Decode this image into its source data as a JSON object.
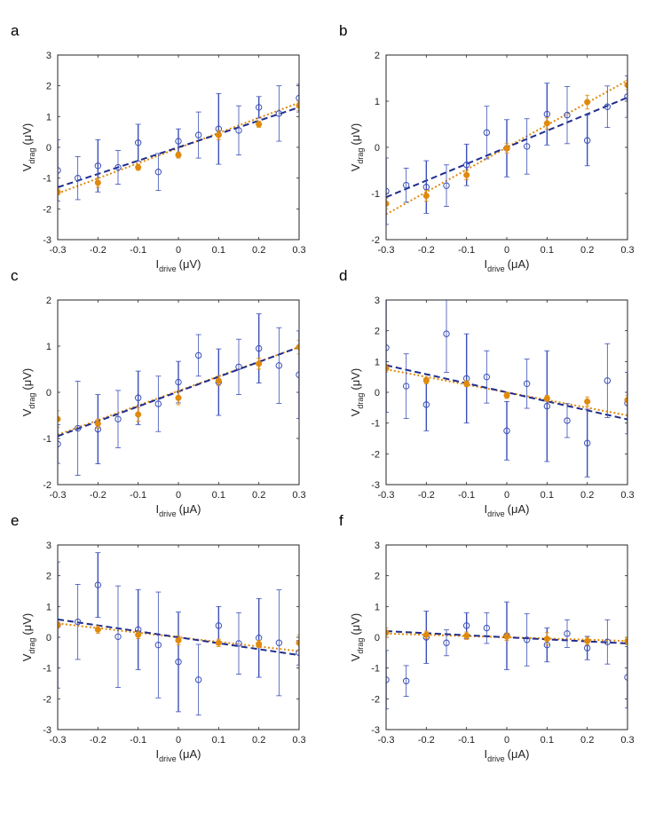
{
  "colors": {
    "blue_fit": "#1f2d8c",
    "blue_points": "#3a4fb8",
    "orange": "#e08a0b",
    "axis": "#262626",
    "tick_text": "#222222"
  },
  "chart_data": [
    {
      "panel": "a",
      "type": "scatter",
      "xlabel_main": "I",
      "xlabel_sub": "drive",
      "xlabel_unit": "(μV)",
      "ylabel_main": "V",
      "ylabel_sub": "drag",
      "ylabel_unit": "(μV)",
      "xlim": [
        -0.3,
        0.3
      ],
      "ylim": [
        -3,
        3
      ],
      "xticks": [
        -0.3,
        -0.2,
        -0.1,
        0,
        0.1,
        0.2,
        0.3
      ],
      "xtick_labels": [
        "-0.3",
        "-0.2",
        "-0.1",
        "0",
        "0.1",
        "0.2",
        "0.3"
      ],
      "yticks": [
        -3,
        -2,
        -1,
        0,
        1,
        2,
        3
      ],
      "ytick_labels": [
        "-3",
        "-2",
        "-1",
        "0",
        "1",
        "2",
        "3"
      ],
      "series": [
        {
          "name": "blue open circles",
          "x": [
            -0.3,
            -0.25,
            -0.2,
            -0.15,
            -0.1,
            -0.05,
            0,
            0.05,
            0.1,
            0.15,
            0.2,
            0.25,
            0.3
          ],
          "y": [
            -0.75,
            -1.0,
            -0.6,
            -0.65,
            0.15,
            -0.8,
            0.2,
            0.4,
            0.6,
            0.55,
            1.3,
            1.1,
            1.6
          ],
          "err": [
            1.0,
            0.7,
            0.85,
            0.55,
            0.6,
            0.6,
            0.4,
            0.75,
            1.15,
            0.8,
            0.35,
            0.9,
            0.45
          ]
        },
        {
          "name": "orange filled",
          "x": [
            -0.3,
            -0.2,
            -0.1,
            0,
            0.1,
            0.2,
            0.3
          ],
          "y": [
            -1.45,
            -1.15,
            -0.65,
            -0.25,
            0.4,
            0.75,
            1.35
          ],
          "err": [
            0.1,
            0.15,
            0.1,
            0.1,
            0.15,
            0.1,
            0.15
          ]
        }
      ],
      "fits": {
        "blue_dashed": [
          -1.3,
          1.3
        ],
        "orange_dotted": [
          -1.5,
          1.45
        ]
      }
    },
    {
      "panel": "b",
      "type": "scatter",
      "xlabel_main": "I",
      "xlabel_sub": "drive",
      "xlabel_unit": "(μA)",
      "ylabel_main": "V",
      "ylabel_sub": "drag",
      "ylabel_unit": "(μV)",
      "xlim": [
        -0.3,
        0.3
      ],
      "ylim": [
        -2,
        2
      ],
      "xticks": [
        -0.3,
        -0.2,
        -0.1,
        0,
        0.1,
        0.2,
        0.3
      ],
      "xtick_labels": [
        "-0.3",
        "-0.2",
        "-0.1",
        "0",
        "0.1",
        "0.2",
        "0.3"
      ],
      "yticks": [
        -2,
        -1,
        0,
        1,
        2
      ],
      "ytick_labels": [
        "-2",
        "-1",
        "0",
        "1",
        "2"
      ],
      "series": [
        {
          "name": "blue open circles",
          "x": [
            -0.3,
            -0.25,
            -0.2,
            -0.15,
            -0.1,
            -0.05,
            0,
            0.05,
            0.1,
            0.15,
            0.2,
            0.25,
            0.3
          ],
          "y": [
            -0.95,
            -0.82,
            -0.86,
            -0.83,
            -0.38,
            0.32,
            -0.02,
            0.02,
            0.72,
            0.7,
            0.15,
            0.88,
            1.1
          ],
          "err": [
            0.72,
            0.37,
            0.57,
            0.45,
            0.45,
            0.57,
            0.62,
            0.6,
            0.67,
            0.62,
            0.55,
            0.45,
            0.45
          ]
        },
        {
          "name": "orange filled",
          "x": [
            -0.3,
            -0.2,
            -0.1,
            0,
            0.1,
            0.2,
            0.3
          ],
          "y": [
            -1.22,
            -1.05,
            -0.6,
            -0.02,
            0.52,
            0.98,
            1.35
          ],
          "err": [
            0.12,
            0.12,
            0.1,
            0.1,
            0.12,
            0.15,
            0.1
          ]
        }
      ],
      "fits": {
        "blue_dashed": [
          -1.08,
          1.08
        ],
        "orange_dotted": [
          -1.45,
          1.45
        ]
      }
    },
    {
      "panel": "c",
      "type": "scatter",
      "xlabel_main": "I",
      "xlabel_sub": "drive",
      "xlabel_unit": "(μA)",
      "ylabel_main": "V",
      "ylabel_sub": "drag",
      "ylabel_unit": "(μV)",
      "xlim": [
        -0.3,
        0.3
      ],
      "ylim": [
        -2,
        2
      ],
      "xticks": [
        -0.3,
        -0.2,
        -0.1,
        0,
        0.1,
        0.2,
        0.3
      ],
      "xtick_labels": [
        "-0.3",
        "-0.2",
        "-0.1",
        "0",
        "0.1",
        "0.2",
        "0.3"
      ],
      "yticks": [
        -2,
        -1,
        0,
        1,
        2
      ],
      "ytick_labels": [
        "-2",
        "-1",
        "0",
        "1",
        "2"
      ],
      "series": [
        {
          "name": "blue open circles",
          "x": [
            -0.3,
            -0.25,
            -0.2,
            -0.15,
            -0.1,
            -0.05,
            0,
            0.05,
            0.1,
            0.15,
            0.2,
            0.25,
            0.3
          ],
          "y": [
            -1.12,
            -0.78,
            -0.8,
            -0.58,
            -0.12,
            -0.25,
            0.22,
            0.8,
            0.22,
            0.55,
            0.95,
            0.58,
            0.38
          ],
          "err": [
            0.42,
            1.02,
            0.75,
            0.62,
            0.58,
            0.6,
            0.45,
            0.45,
            0.72,
            0.6,
            0.75,
            0.82,
            0.95
          ]
        },
        {
          "name": "orange filled",
          "x": [
            -0.3,
            -0.2,
            -0.1,
            0,
            0.1,
            0.2,
            0.3
          ],
          "y": [
            -0.58,
            -0.68,
            -0.48,
            -0.12,
            0.25,
            0.62,
            0.98
          ],
          "err": [
            0.18,
            0.1,
            0.15,
            0.15,
            0.1,
            0.12,
            0.15
          ]
        }
      ],
      "fits": {
        "blue_dashed": [
          -0.95,
          0.98
        ],
        "orange_dotted": [
          -0.92,
          0.98
        ]
      }
    },
    {
      "panel": "d",
      "type": "scatter",
      "xlabel_main": "I",
      "xlabel_sub": "drive",
      "xlabel_unit": "(μA)",
      "ylabel_main": "V",
      "ylabel_sub": "drag",
      "ylabel_unit": "(μV)",
      "xlim": [
        -0.3,
        0.3
      ],
      "ylim": [
        -3,
        3
      ],
      "xticks": [
        -0.3,
        -0.2,
        -0.1,
        0,
        0.1,
        0.2,
        0.3
      ],
      "xtick_labels": [
        "-0.3",
        "-0.2",
        "-0.1",
        "0",
        "0.1",
        "0.2",
        "0.3"
      ],
      "yticks": [
        -3,
        -2,
        -1,
        0,
        1,
        2,
        3
      ],
      "ytick_labels": [
        "-3",
        "-2",
        "-1",
        "0",
        "1",
        "2",
        "3"
      ],
      "series": [
        {
          "name": "blue open circles",
          "x": [
            -0.3,
            -0.25,
            -0.2,
            -0.15,
            -0.1,
            -0.05,
            0,
            0.05,
            0.1,
            0.15,
            0.2,
            0.25,
            0.3
          ],
          "y": [
            1.45,
            0.2,
            -0.4,
            1.9,
            0.45,
            0.5,
            -1.25,
            0.28,
            -0.45,
            -0.92,
            -1.65,
            0.38,
            -0.35
          ],
          "err": [
            2.1,
            1.05,
            0.85,
            1.25,
            1.45,
            0.85,
            0.95,
            0.8,
            1.8,
            0.55,
            1.1,
            1.2,
            1.0
          ]
        },
        {
          "name": "orange filled",
          "x": [
            -0.3,
            -0.2,
            -0.1,
            0,
            0.1,
            0.2,
            0.3
          ],
          "y": [
            0.78,
            0.38,
            0.28,
            -0.1,
            -0.2,
            -0.3,
            -0.25
          ],
          "err": [
            0.12,
            0.1,
            0.1,
            0.1,
            0.1,
            0.15,
            0.15
          ]
        }
      ],
      "fits": {
        "blue_dashed": [
          0.88,
          -0.88
        ],
        "orange_dotted": [
          0.75,
          -0.75
        ]
      }
    },
    {
      "panel": "e",
      "type": "scatter",
      "xlabel_main": "I",
      "xlabel_sub": "drive",
      "xlabel_unit": "(μA)",
      "ylabel_main": "V",
      "ylabel_sub": "drag",
      "ylabel_unit": "(μV)",
      "xlim": [
        -0.3,
        0.3
      ],
      "ylim": [
        -3,
        3
      ],
      "xticks": [
        -0.3,
        -0.2,
        -0.1,
        0,
        0.1,
        0.2,
        0.3
      ],
      "xtick_labels": [
        "-0.3",
        "-0.2",
        "-0.1",
        "0",
        "0.1",
        "0.2",
        "0.3"
      ],
      "yticks": [
        -3,
        -2,
        -1,
        0,
        1,
        2,
        3
      ],
      "ytick_labels": [
        "-3",
        "-2",
        "-1",
        "0",
        "1",
        "2",
        "3"
      ],
      "series": [
        {
          "name": "blue open circles",
          "x": [
            -0.3,
            -0.25,
            -0.2,
            -0.15,
            -0.1,
            -0.05,
            0,
            0.05,
            0.1,
            0.15,
            0.2,
            0.25,
            0.3
          ],
          "y": [
            0.4,
            0.5,
            1.7,
            0.02,
            0.25,
            -0.25,
            -0.8,
            -1.38,
            0.38,
            -0.2,
            -0.02,
            -0.18,
            -0.5
          ],
          "err": [
            2.05,
            1.22,
            1.05,
            1.65,
            1.3,
            1.72,
            1.62,
            1.15,
            0.62,
            1.0,
            1.28,
            1.72,
            0.4
          ]
        },
        {
          "name": "orange filled",
          "x": [
            -0.3,
            -0.2,
            -0.1,
            0,
            0.1,
            0.2,
            0.3
          ],
          "y": [
            0.4,
            0.25,
            0.08,
            -0.1,
            -0.18,
            -0.22,
            -0.18
          ],
          "err": [
            0.1,
            0.12,
            0.12,
            0.15,
            0.12,
            0.12,
            0.25
          ]
        }
      ],
      "fits": {
        "blue_dashed": [
          0.58,
          -0.58
        ],
        "orange_dotted": [
          0.45,
          -0.45
        ]
      }
    },
    {
      "panel": "f",
      "type": "scatter",
      "xlabel_main": "I",
      "xlabel_sub": "drive",
      "xlabel_unit": "(μA)",
      "ylabel_main": "V",
      "ylabel_sub": "drag",
      "ylabel_unit": "(μV)",
      "xlim": [
        -0.3,
        0.3
      ],
      "ylim": [
        -3,
        3
      ],
      "xticks": [
        -0.3,
        -0.2,
        -0.1,
        0,
        0.1,
        0.2,
        0.3
      ],
      "xtick_labels": [
        "-0.3",
        "-0.2",
        "-0.1",
        "0",
        "0.1",
        "0.2",
        "0.3"
      ],
      "yticks": [
        -3,
        -2,
        -1,
        0,
        1,
        2,
        3
      ],
      "ytick_labels": [
        "-3",
        "-2",
        "-1",
        "0",
        "1",
        "2",
        "3"
      ],
      "series": [
        {
          "name": "blue open circles",
          "x": [
            -0.3,
            -0.25,
            -0.2,
            -0.15,
            -0.1,
            -0.05,
            0,
            0.05,
            0.1,
            0.15,
            0.2,
            0.25,
            0.3
          ],
          "y": [
            -1.38,
            -1.42,
            0.0,
            -0.18,
            0.38,
            0.3,
            0.05,
            -0.08,
            -0.25,
            0.12,
            -0.35,
            -0.15,
            -1.3
          ],
          "err": [
            0.95,
            0.5,
            0.85,
            0.42,
            0.42,
            0.5,
            1.1,
            0.85,
            0.55,
            0.45,
            0.38,
            0.72,
            1.0
          ]
        },
        {
          "name": "orange filled",
          "x": [
            -0.3,
            -0.2,
            -0.1,
            0,
            0.1,
            0.2,
            0.3
          ],
          "y": [
            0.15,
            0.08,
            0.05,
            0.02,
            -0.05,
            -0.12,
            -0.12
          ],
          "err": [
            0.15,
            0.12,
            0.12,
            0.12,
            0.2,
            0.12,
            0.12
          ]
        }
      ],
      "fits": {
        "blue_dashed": [
          0.2,
          -0.2
        ],
        "orange_dotted": [
          0.12,
          -0.12
        ]
      }
    }
  ]
}
